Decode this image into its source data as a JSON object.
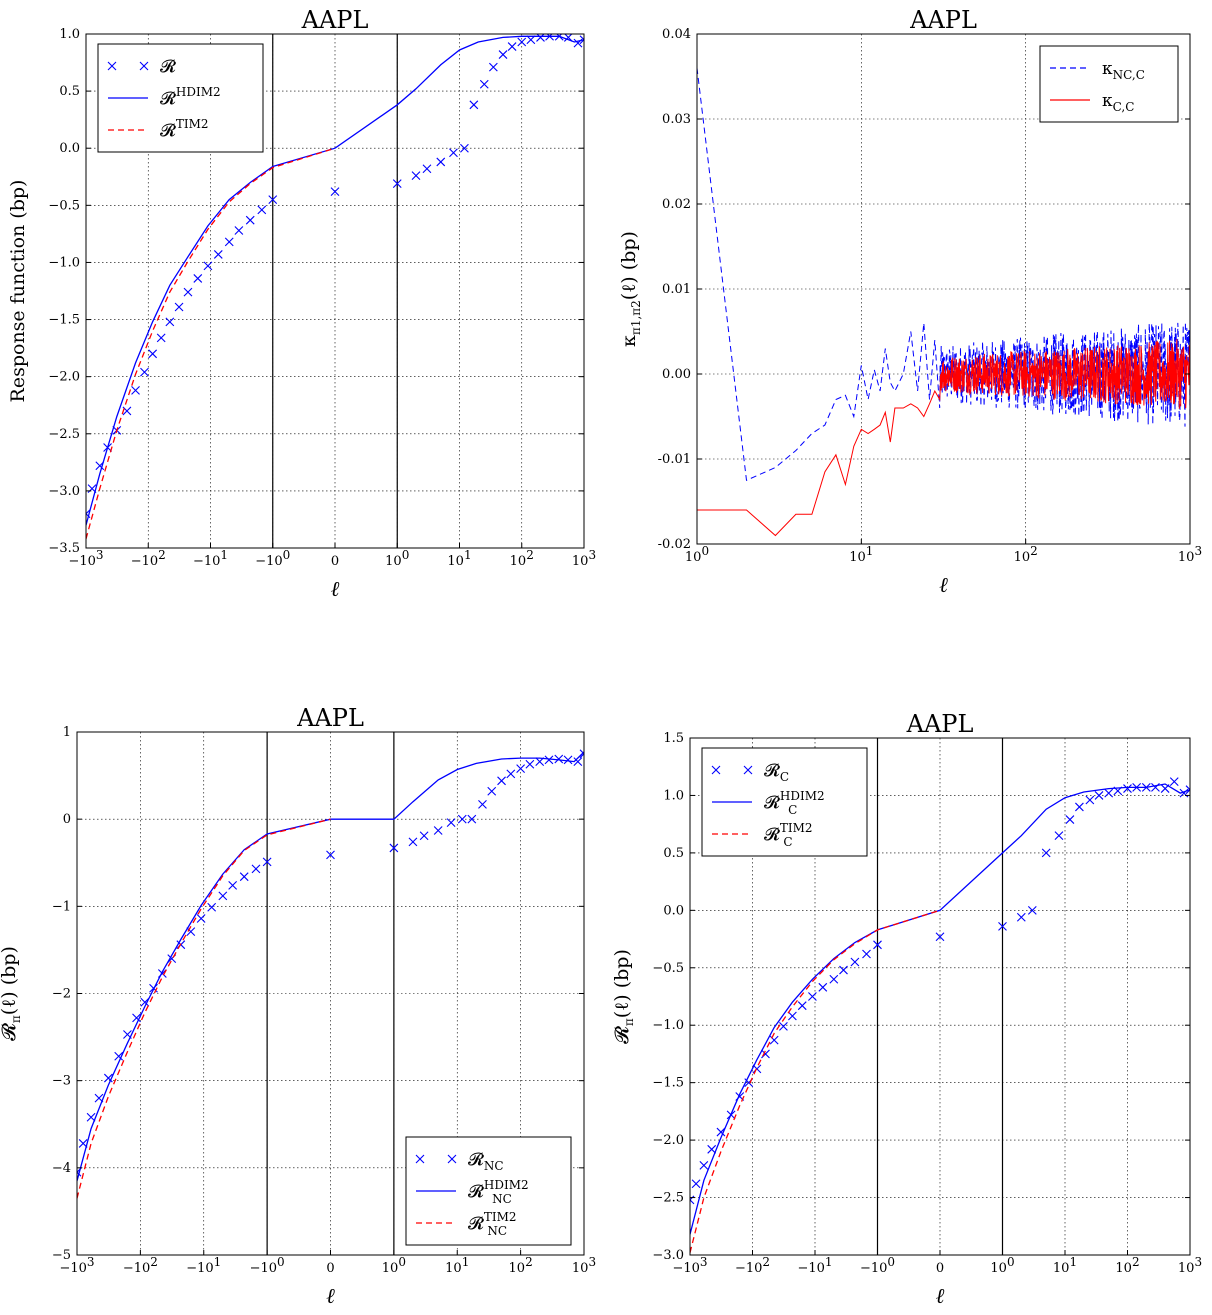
{
  "figure": {
    "description_note": "",
    "panels_order": [
      "top-left",
      "top-right",
      "bottom-left",
      "bottom-right"
    ]
  },
  "chart_data": [
    {
      "id": "panel-response",
      "type": "line",
      "title": "AAPL",
      "xlabel": "ℓ",
      "ylabel": "Response function (bp)",
      "xscale": "symlog",
      "xlim": [
        -1000,
        1000
      ],
      "ylim": [
        -3.5,
        1.0
      ],
      "yticks": [
        "1.0",
        "0.5",
        "0.0",
        "−0.5",
        "−1.0",
        "−1.5",
        "−2.0",
        "−2.5",
        "−3.0",
        "−3.5"
      ],
      "ytick_values": [
        1.0,
        0.5,
        0.0,
        -0.5,
        -1.0,
        -1.5,
        -2.0,
        -2.5,
        -3.0,
        -3.5
      ],
      "xticks": [
        {
          "base": "−10",
          "exp": "3",
          "value": -1000
        },
        {
          "base": "−10",
          "exp": "2",
          "value": -100
        },
        {
          "base": "−10",
          "exp": "1",
          "value": -10
        },
        {
          "base": "−10",
          "exp": "0",
          "value": -1
        },
        {
          "base": "0",
          "exp": "",
          "value": 0
        },
        {
          "base": "10",
          "exp": "0",
          "value": 1
        },
        {
          "base": "10",
          "exp": "1",
          "value": 10
        },
        {
          "base": "10",
          "exp": "2",
          "value": 100
        },
        {
          "base": "10",
          "exp": "3",
          "value": 1000
        }
      ],
      "vlines": [
        -1,
        1
      ],
      "grid": true,
      "legend_position": "upper left",
      "series": [
        {
          "name": "R",
          "label_main": "𝓡",
          "label_sup": "",
          "label_sub": "",
          "style": "marker-x",
          "color": "#0000ff",
          "x": [
            -1000,
            -800,
            -600,
            -450,
            -320,
            -220,
            -160,
            -115,
            -85,
            -62,
            -45,
            -32,
            -23,
            -16,
            -11,
            -7.5,
            -5,
            -3.5,
            -2.3,
            -1.5,
            -1,
            0,
            1,
            2,
            3,
            5,
            8,
            12,
            17,
            25,
            35,
            50,
            70,
            100,
            140,
            200,
            280,
            400,
            560,
            800,
            1000
          ],
          "y": [
            -3.2,
            -2.98,
            -2.78,
            -2.62,
            -2.47,
            -2.3,
            -2.12,
            -1.96,
            -1.8,
            -1.66,
            -1.52,
            -1.39,
            -1.26,
            -1.14,
            -1.03,
            -0.93,
            -0.82,
            -0.72,
            -0.63,
            -0.54,
            -0.45,
            -0.38,
            -0.31,
            -0.24,
            -0.18,
            -0.12,
            -0.04,
            0.0,
            0.38,
            0.56,
            0.71,
            0.82,
            0.89,
            0.93,
            0.95,
            0.97,
            0.98,
            0.98,
            0.97,
            0.92,
            0.95
          ]
        },
        {
          "name": "R HDIM2",
          "label_main": "𝓡",
          "label_sup": "HDIM2",
          "label_sub": "",
          "style": "solid",
          "color": "#0000ff",
          "x": [
            -1000,
            -600,
            -320,
            -160,
            -85,
            -45,
            -23,
            -11,
            -5,
            -2.3,
            -1,
            0,
            1,
            2,
            5,
            10,
            20,
            50,
            100,
            200,
            400,
            700,
            1000
          ],
          "y": [
            -3.3,
            -2.85,
            -2.35,
            -1.88,
            -1.52,
            -1.2,
            -0.95,
            -0.68,
            -0.45,
            -0.3,
            -0.16,
            0.0,
            0.38,
            0.52,
            0.73,
            0.86,
            0.93,
            0.97,
            0.98,
            0.98,
            0.98,
            0.93,
            0.95
          ]
        },
        {
          "name": "R TIM2",
          "label_main": "𝓡",
          "label_sup": "TIM2",
          "label_sub": "",
          "style": "dashed",
          "color": "#ff0000",
          "x": [
            -1000,
            -600,
            -320,
            -160,
            -85,
            -45,
            -23,
            -11,
            -5,
            -2.3,
            -1,
            0
          ],
          "y": [
            -3.42,
            -2.98,
            -2.47,
            -1.98,
            -1.6,
            -1.26,
            -0.99,
            -0.71,
            -0.47,
            -0.31,
            -0.17,
            0.0
          ]
        }
      ]
    },
    {
      "id": "panel-kappa",
      "type": "line",
      "title": "AAPL",
      "xlabel": "ℓ",
      "ylabel": "κ_{π1,π2}(ℓ) (bp)",
      "xscale": "log",
      "xlim": [
        1,
        1000
      ],
      "ylim": [
        -0.02,
        0.04
      ],
      "yticks": [
        "0.04",
        "0.03",
        "0.02",
        "0.01",
        "0.00",
        "-0.01",
        "-0.02"
      ],
      "ytick_values": [
        0.04,
        0.03,
        0.02,
        0.01,
        0.0,
        -0.01,
        -0.02
      ],
      "xticks": [
        {
          "base": "10",
          "exp": "0",
          "value": 1
        },
        {
          "base": "10",
          "exp": "1",
          "value": 10
        },
        {
          "base": "10",
          "exp": "2",
          "value": 100
        },
        {
          "base": "10",
          "exp": "3",
          "value": 1000
        }
      ],
      "grid": true,
      "legend_position": "upper right",
      "series": [
        {
          "name": "κ NC,C",
          "label_main": "κ",
          "label_sup": "",
          "label_sub": "NC,C",
          "style": "dashed",
          "color": "#0000ff",
          "x": [
            1,
            2,
            3,
            4,
            5,
            6,
            7,
            8,
            9,
            10,
            11,
            12,
            13,
            14,
            15,
            16,
            18,
            20,
            22,
            24,
            26,
            28,
            30
          ],
          "y": [
            0.036,
            -0.0125,
            -0.011,
            -0.009,
            -0.007,
            -0.006,
            -0.003,
            -0.0025,
            -0.005,
            0.001,
            -0.003,
            0.0005,
            -0.002,
            0.003,
            -0.001,
            -0.002,
            0.0,
            0.005,
            -0.002,
            0.006,
            -0.003,
            0.004,
            -0.004
          ],
          "noise": {
            "from": 30,
            "to": 1000,
            "amplitude": 0.0055
          }
        },
        {
          "name": "κ C,C",
          "label_main": "κ",
          "label_sup": "",
          "label_sub": "C,C",
          "style": "solid",
          "color": "#ff0000",
          "x": [
            1,
            2,
            3,
            4,
            5,
            6,
            7,
            8,
            9,
            10,
            11,
            12,
            13,
            14,
            15,
            16,
            18,
            20,
            22,
            24,
            26,
            28,
            30
          ],
          "y": [
            -0.016,
            -0.016,
            -0.019,
            -0.0165,
            -0.0165,
            -0.0115,
            -0.0095,
            -0.013,
            -0.0085,
            -0.0065,
            -0.007,
            -0.0065,
            -0.006,
            -0.0045,
            -0.008,
            -0.004,
            -0.004,
            -0.0035,
            -0.004,
            -0.005,
            -0.0035,
            -0.002,
            -0.003
          ],
          "noise": {
            "from": 30,
            "to": 1000,
            "amplitude": 0.0035
          }
        }
      ]
    },
    {
      "id": "panel-nc",
      "type": "line",
      "title": "AAPL",
      "xlabel": "ℓ",
      "ylabel": "𝓡π(ℓ) (bp)",
      "xscale": "symlog",
      "xlim": [
        -1000,
        1000
      ],
      "ylim": [
        -5,
        1
      ],
      "yticks": [
        "1",
        "0",
        "−1",
        "−2",
        "−3",
        "−4",
        "−5"
      ],
      "ytick_values": [
        1,
        0,
        -1,
        -2,
        -3,
        -4,
        -5
      ],
      "xticks": [
        {
          "base": "−10",
          "exp": "3",
          "value": -1000
        },
        {
          "base": "−10",
          "exp": "2",
          "value": -100
        },
        {
          "base": "−10",
          "exp": "1",
          "value": -10
        },
        {
          "base": "−10",
          "exp": "0",
          "value": -1
        },
        {
          "base": "0",
          "exp": "",
          "value": 0
        },
        {
          "base": "10",
          "exp": "0",
          "value": 1
        },
        {
          "base": "10",
          "exp": "1",
          "value": 10
        },
        {
          "base": "10",
          "exp": "2",
          "value": 100
        },
        {
          "base": "10",
          "exp": "3",
          "value": 1000
        }
      ],
      "vlines": [
        -1,
        1
      ],
      "grid": true,
      "legend_position": "lower right",
      "series": [
        {
          "name": "R NC",
          "label_main": "𝓡",
          "label_sup": "",
          "label_sub": "NC",
          "style": "marker-x",
          "color": "#0000ff",
          "x": [
            -1000,
            -800,
            -600,
            -450,
            -320,
            -220,
            -160,
            -115,
            -85,
            -62,
            -45,
            -32,
            -23,
            -16,
            -11,
            -7.5,
            -5,
            -3.5,
            -2.3,
            -1.5,
            -1,
            0,
            1,
            2,
            3,
            5,
            8,
            12,
            17,
            25,
            35,
            50,
            70,
            100,
            140,
            200,
            280,
            400,
            560,
            800,
            1000
          ],
          "y": [
            -4.05,
            -3.72,
            -3.42,
            -3.2,
            -2.97,
            -2.72,
            -2.47,
            -2.28,
            -2.1,
            -1.94,
            -1.77,
            -1.6,
            -1.44,
            -1.29,
            -1.14,
            -1.01,
            -0.88,
            -0.76,
            -0.66,
            -0.57,
            -0.49,
            -0.41,
            -0.33,
            -0.26,
            -0.19,
            -0.13,
            -0.04,
            0.0,
            0.0,
            0.17,
            0.32,
            0.44,
            0.52,
            0.58,
            0.63,
            0.66,
            0.68,
            0.69,
            0.68,
            0.66,
            0.75
          ]
        },
        {
          "name": "R NC HDIM2",
          "label_main": "𝓡",
          "label_sup": "HDIM2",
          "label_sub": "NC",
          "style": "solid",
          "color": "#0000ff",
          "x": [
            -1000,
            -600,
            -320,
            -160,
            -85,
            -45,
            -23,
            -11,
            -5,
            -2.3,
            -1,
            0,
            1,
            2,
            5,
            10,
            20,
            50,
            100,
            200,
            400,
            700,
            1000
          ],
          "y": [
            -4.15,
            -3.55,
            -3.05,
            -2.57,
            -2.15,
            -1.75,
            -1.38,
            -0.99,
            -0.63,
            -0.35,
            -0.17,
            0.0,
            0.0,
            0.2,
            0.45,
            0.57,
            0.64,
            0.69,
            0.7,
            0.7,
            0.68,
            0.66,
            0.77
          ]
        },
        {
          "name": "R NC TIM2",
          "label_main": "𝓡",
          "label_sup": "TIM2",
          "label_sub": "NC",
          "style": "dashed",
          "color": "#ff0000",
          "x": [
            -1000,
            -600,
            -320,
            -160,
            -85,
            -45,
            -23,
            -11,
            -5,
            -2.3,
            -1,
            0
          ],
          "y": [
            -4.35,
            -3.72,
            -3.18,
            -2.67,
            -2.22,
            -1.81,
            -1.43,
            -1.03,
            -0.65,
            -0.36,
            -0.18,
            0.0
          ]
        }
      ]
    },
    {
      "id": "panel-c",
      "type": "line",
      "title": "AAPL",
      "xlabel": "ℓ",
      "ylabel": "𝓡π(ℓ) (bp)",
      "xscale": "symlog",
      "xlim": [
        -1000,
        1000
      ],
      "ylim": [
        -3.0,
        1.5
      ],
      "yticks": [
        "1.5",
        "1.0",
        "0.5",
        "0.0",
        "−0.5",
        "−1.0",
        "−1.5",
        "−2.0",
        "−2.5",
        "−3.0"
      ],
      "ytick_values": [
        1.5,
        1.0,
        0.5,
        0.0,
        -0.5,
        -1.0,
        -1.5,
        -2.0,
        -2.5,
        -3.0
      ],
      "xticks": [
        {
          "base": "−10",
          "exp": "3",
          "value": -1000
        },
        {
          "base": "−10",
          "exp": "2",
          "value": -100
        },
        {
          "base": "−10",
          "exp": "1",
          "value": -10
        },
        {
          "base": "−10",
          "exp": "0",
          "value": -1
        },
        {
          "base": "0",
          "exp": "",
          "value": 0
        },
        {
          "base": "10",
          "exp": "0",
          "value": 1
        },
        {
          "base": "10",
          "exp": "1",
          "value": 10
        },
        {
          "base": "10",
          "exp": "2",
          "value": 100
        },
        {
          "base": "10",
          "exp": "3",
          "value": 1000
        }
      ],
      "vlines": [
        -1,
        1
      ],
      "grid": true,
      "legend_position": "upper left",
      "series": [
        {
          "name": "R C",
          "label_main": "𝓡",
          "label_sup": "",
          "label_sub": "C",
          "style": "marker-x",
          "color": "#0000ff",
          "x": [
            -1000,
            -800,
            -600,
            -450,
            -320,
            -220,
            -160,
            -115,
            -85,
            -62,
            -45,
            -32,
            -23,
            -16,
            -11,
            -7.5,
            -5,
            -3.5,
            -2.3,
            -1.5,
            -1,
            0,
            1,
            2,
            3,
            5,
            8,
            12,
            17,
            25,
            35,
            50,
            70,
            100,
            140,
            200,
            280,
            400,
            560,
            800,
            1000
          ],
          "y": [
            -2.52,
            -2.38,
            -2.22,
            -2.08,
            -1.93,
            -1.78,
            -1.62,
            -1.5,
            -1.38,
            -1.25,
            -1.13,
            -1.01,
            -0.92,
            -0.83,
            -0.75,
            -0.67,
            -0.6,
            -0.52,
            -0.45,
            -0.38,
            -0.3,
            -0.23,
            -0.14,
            -0.06,
            0.0,
            0.5,
            0.65,
            0.79,
            0.9,
            0.96,
            1.0,
            1.02,
            1.04,
            1.06,
            1.07,
            1.07,
            1.07,
            1.06,
            1.12,
            1.02,
            1.05
          ]
        },
        {
          "name": "R C HDIM2",
          "label_main": "𝓡",
          "label_sup": "HDIM2",
          "label_sub": "C",
          "style": "solid",
          "color": "#0000ff",
          "x": [
            -1000,
            -600,
            -320,
            -160,
            -85,
            -45,
            -23,
            -11,
            -5,
            -2.3,
            -1,
            0,
            1,
            2,
            5,
            10,
            20,
            50,
            100,
            200,
            400,
            700,
            1000
          ],
          "y": [
            -2.82,
            -2.35,
            -1.98,
            -1.6,
            -1.3,
            -1.02,
            -0.8,
            -0.6,
            -0.42,
            -0.28,
            -0.17,
            0.0,
            0.5,
            0.65,
            0.88,
            0.98,
            1.03,
            1.06,
            1.07,
            1.07,
            1.1,
            1.02,
            1.05
          ]
        },
        {
          "name": "R C TIM2",
          "label_main": "𝓡",
          "label_sup": "TIM2",
          "label_sub": "C",
          "style": "dashed",
          "color": "#ff0000",
          "x": [
            -1000,
            -600,
            -320,
            -160,
            -85,
            -45,
            -23,
            -11,
            -5,
            -2.3,
            -1,
            0
          ],
          "y": [
            -2.98,
            -2.5,
            -2.1,
            -1.7,
            -1.37,
            -1.07,
            -0.84,
            -0.62,
            -0.43,
            -0.29,
            -0.17,
            0.0
          ]
        }
      ]
    }
  ]
}
